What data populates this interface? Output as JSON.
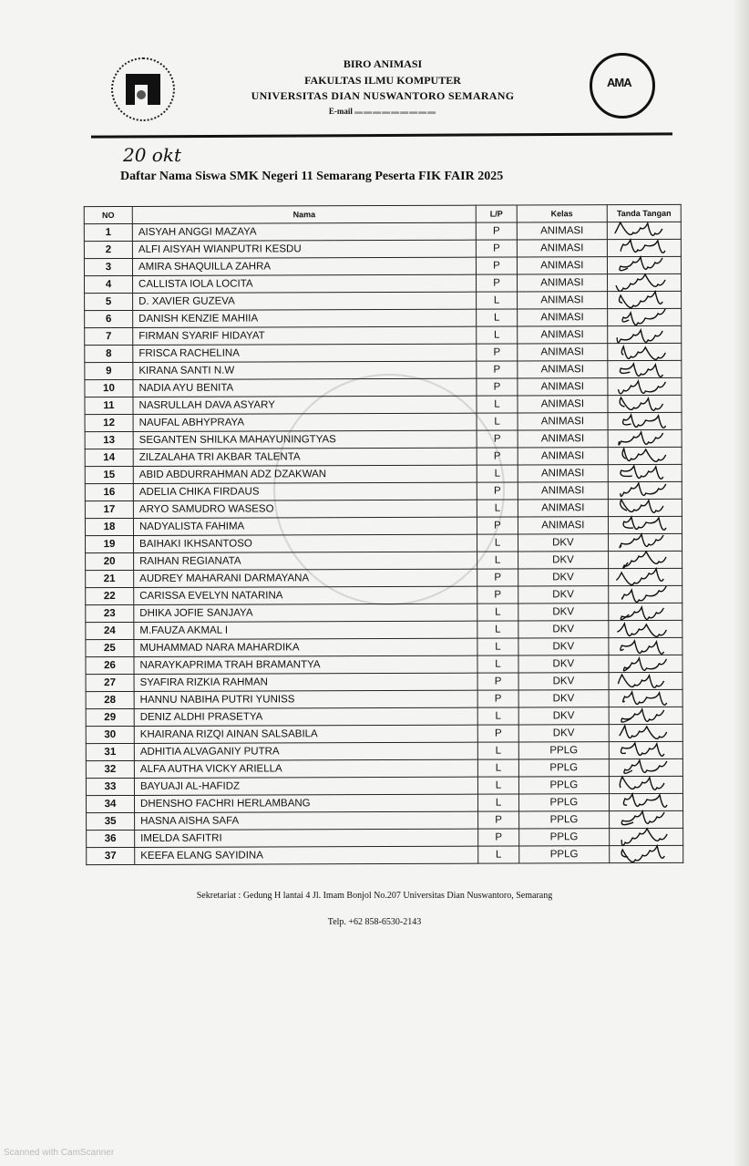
{
  "header": {
    "line1": "BIRO ANIMASI",
    "line2": "FAKULTAS ILMU KOMPUTER",
    "line3": "UNIVERSITAS DIAN NUSWANTORO SEMARANG",
    "email_label": "E-mail"
  },
  "handwritten_date": "20 okt",
  "title": "Daftar Nama Siswa SMK Negeri 11 Semarang Peserta FIK FAIR 2025",
  "table": {
    "columns": [
      "NO",
      "Nama",
      "L/P",
      "Kelas",
      "Tanda Tangan"
    ],
    "rows": [
      {
        "no": "1",
        "nama": "AISYAH ANGGI MAZAYA",
        "lp": "P",
        "kelas": "ANIMASI"
      },
      {
        "no": "2",
        "nama": "ALFI AISYAH WIANPUTRI KESDU",
        "lp": "P",
        "kelas": "ANIMASI"
      },
      {
        "no": "3",
        "nama": "AMIRA SHAQUILLA ZAHRA",
        "lp": "P",
        "kelas": "ANIMASI"
      },
      {
        "no": "4",
        "nama": "CALLISTA IOLA LOCITA",
        "lp": "P",
        "kelas": "ANIMASI"
      },
      {
        "no": "5",
        "nama": "D. XAVIER GUZEVA",
        "lp": "L",
        "kelas": "ANIMASI"
      },
      {
        "no": "6",
        "nama": "DANISH KENZIE MAHIIA",
        "lp": "L",
        "kelas": "ANIMASI"
      },
      {
        "no": "7",
        "nama": "FIRMAN SYARIF HIDAYAT",
        "lp": "L",
        "kelas": "ANIMASI"
      },
      {
        "no": "8",
        "nama": "FRISCA RACHELINA",
        "lp": "P",
        "kelas": "ANIMASI"
      },
      {
        "no": "9",
        "nama": "KIRANA SANTI N.W",
        "lp": "P",
        "kelas": "ANIMASI"
      },
      {
        "no": "10",
        "nama": "NADIA AYU BENITA",
        "lp": "P",
        "kelas": "ANIMASI"
      },
      {
        "no": "11",
        "nama": "NASRULLAH DAVA ASYARY",
        "lp": "L",
        "kelas": "ANIMASI"
      },
      {
        "no": "12",
        "nama": "NAUFAL ABHYPRAYA",
        "lp": "L",
        "kelas": "ANIMASI"
      },
      {
        "no": "13",
        "nama": "SEGANTEN SHILKA MAHAYUNINGTYAS",
        "lp": "P",
        "kelas": "ANIMASI"
      },
      {
        "no": "14",
        "nama": "ZILZALAHA TRI AKBAR TALENTA",
        "lp": "P",
        "kelas": "ANIMASI"
      },
      {
        "no": "15",
        "nama": "ABID ABDURRAHMAN ADZ DZAKWAN",
        "lp": "L",
        "kelas": "ANIMASI"
      },
      {
        "no": "16",
        "nama": "ADELIA CHIKA FIRDAUS",
        "lp": "P",
        "kelas": "ANIMASI"
      },
      {
        "no": "17",
        "nama": "ARYO SAMUDRO WASESO",
        "lp": "L",
        "kelas": "ANIMASI"
      },
      {
        "no": "18",
        "nama": "NADYALISTA FAHIMA",
        "lp": "P",
        "kelas": "ANIMASI"
      },
      {
        "no": "19",
        "nama": "BAIHAKI IKHSANTOSO",
        "lp": "L",
        "kelas": "DKV"
      },
      {
        "no": "20",
        "nama": "RAIHAN REGIANATA",
        "lp": "L",
        "kelas": "DKV"
      },
      {
        "no": "21",
        "nama": "AUDREY MAHARANI DARMAYANA",
        "lp": "P",
        "kelas": "DKV"
      },
      {
        "no": "22",
        "nama": "CARISSA EVELYN NATARINA",
        "lp": "P",
        "kelas": "DKV"
      },
      {
        "no": "23",
        "nama": "DHIKA JOFIE SANJAYA",
        "lp": "L",
        "kelas": "DKV"
      },
      {
        "no": "24",
        "nama": "M.FAUZA AKMAL I",
        "lp": "L",
        "kelas": "DKV"
      },
      {
        "no": "25",
        "nama": "MUHAMMAD NARA MAHARDIKA",
        "lp": "L",
        "kelas": "DKV"
      },
      {
        "no": "26",
        "nama": "NARAYKAPRIMA TRAH BRAMANTYA",
        "lp": "L",
        "kelas": "DKV"
      },
      {
        "no": "27",
        "nama": "SYAFIRA RIZKIA RAHMAN",
        "lp": "P",
        "kelas": "DKV"
      },
      {
        "no": "28",
        "nama": "HANNU NABIHA PUTRI YUNISS",
        "lp": "P",
        "kelas": "DKV"
      },
      {
        "no": "29",
        "nama": "DENIZ ALDHI PRASETYA",
        "lp": "L",
        "kelas": "DKV"
      },
      {
        "no": "30",
        "nama": "KHAIRANA RIZQI AINAN SALSABILA",
        "lp": "P",
        "kelas": "DKV"
      },
      {
        "no": "31",
        "nama": "ADHITIA ALVAGANIY PUTRA",
        "lp": "L",
        "kelas": "PPLG"
      },
      {
        "no": "32",
        "nama": "ALFA AUTHA VICKY ARIELLA",
        "lp": "L",
        "kelas": "PPLG"
      },
      {
        "no": "33",
        "nama": "BAYUAJI AL-HAFIDZ",
        "lp": "L",
        "kelas": "PPLG"
      },
      {
        "no": "34",
        "nama": "DHENSHO FACHRI HERLAMBANG",
        "lp": "L",
        "kelas": "PPLG"
      },
      {
        "no": "35",
        "nama": "HASNA AISHA SAFA",
        "lp": "P",
        "kelas": "PPLG"
      },
      {
        "no": "36",
        "nama": "IMELDA SAFITRI",
        "lp": "P",
        "kelas": "PPLG"
      },
      {
        "no": "37",
        "nama": "KEEFA ELANG SAYIDINA",
        "lp": "L",
        "kelas": "PPLG"
      }
    ]
  },
  "footer": {
    "address": "Sekretariat : Gedung H lantai 4 Jl. Imam Bonjol No.207 Universitas Dian Nuswantoro, Semarang",
    "phone": "Telp. +62 858-6530-2143"
  },
  "scanner_watermark": "Scanned with CamScanner",
  "stamp_text": "BIRO ANIMASI"
}
